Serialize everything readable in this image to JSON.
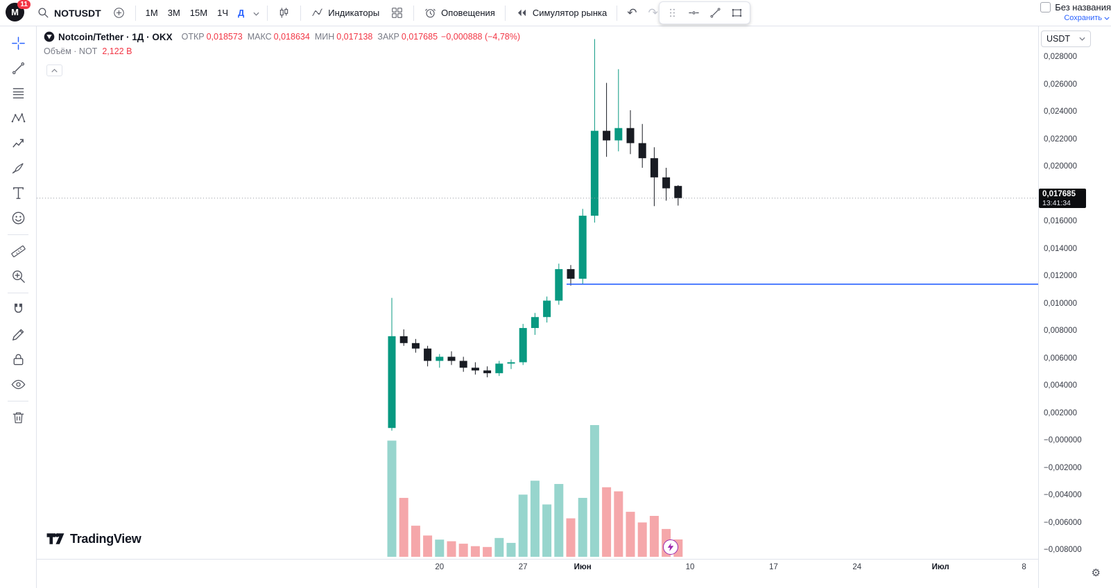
{
  "topbar": {
    "avatar_letter": "M",
    "notification_count": "11",
    "symbol": "NOTUSDT",
    "timeframes": [
      "1М",
      "3М",
      "15М",
      "1Ч"
    ],
    "active_timeframe": "Д",
    "indicators_label": "Индикаторы",
    "alerts_label": "Оповещения",
    "replay_label": "Симулятор рынка",
    "layout_name": "Без названия",
    "save_label": "Сохранить"
  },
  "left_toolbar": {
    "tools": [
      "crosshair",
      "trend-line",
      "fib-retracement",
      "xabcd-pattern",
      "forecast",
      "brush",
      "text",
      "emoji",
      "ruler",
      "zoom",
      "magnet",
      "edit",
      "lock",
      "eye",
      "trash"
    ]
  },
  "legend": {
    "title": "Notcoin/Tether · 1Д · OKX",
    "ohlc": [
      {
        "label": "ОТКР",
        "value": "0,018573"
      },
      {
        "label": "МАКС",
        "value": "0,018634"
      },
      {
        "label": "МИН",
        "value": "0,017138"
      },
      {
        "label": "ЗАКР",
        "value": "0,017685"
      }
    ],
    "change": "−0,000888 (−4,78%)",
    "volume_label": "Объём · NOT",
    "volume_value": "2,122 В"
  },
  "price_axis": {
    "currency": "USDT",
    "labels": [
      "0,028000",
      "0,026000",
      "0,024000",
      "0,022000",
      "0,020000",
      "0,018000",
      "0,016000",
      "0,014000",
      "0,012000",
      "0,010000",
      "0,008000",
      "0,006000",
      "0,004000",
      "0,002000",
      "−0,000000",
      "−0,002000",
      "−0,004000",
      "−0,006000",
      "−0,008000"
    ],
    "current_price": "0,017685",
    "countdown": "13:41:34"
  },
  "time_axis": {
    "labels": [
      {
        "text": "20",
        "index": 4
      },
      {
        "text": "27",
        "index": 11
      },
      {
        "text": "Июн",
        "index": 16,
        "bold": true
      },
      {
        "text": "10",
        "index": 25
      },
      {
        "text": "17",
        "index": 32
      },
      {
        "text": "24",
        "index": 39
      },
      {
        "text": "Июл",
        "index": 46,
        "bold": true
      },
      {
        "text": "8",
        "index": 53
      }
    ]
  },
  "watermark": "TradingView",
  "chart_data": {
    "type": "candlestick",
    "title": "Notcoin/Tether 1Д OKX",
    "symbol": "NOTUSDT",
    "exchange": "OKX",
    "interval": "1Д",
    "y_axis": {
      "min": -0.008,
      "max": 0.028,
      "step": 0.002
    },
    "last_price": 0.017685,
    "last_price_label": "0,017685",
    "level_line_price": 0.0114,
    "volume_unit": "B",
    "candles": [
      {
        "o": 0.0009,
        "h": 0.0104,
        "l": 0.0007,
        "c": 0.0076,
        "v": 14.2
      },
      {
        "o": 0.0076,
        "h": 0.0081,
        "l": 0.0069,
        "c": 0.0071,
        "v": 7.2
      },
      {
        "o": 0.0071,
        "h": 0.0074,
        "l": 0.0064,
        "c": 0.0067,
        "v": 3.8
      },
      {
        "o": 0.0067,
        "h": 0.0069,
        "l": 0.0054,
        "c": 0.0058,
        "v": 2.6
      },
      {
        "o": 0.0058,
        "h": 0.0063,
        "l": 0.0053,
        "c": 0.0061,
        "v": 2.1
      },
      {
        "o": 0.0061,
        "h": 0.0065,
        "l": 0.0055,
        "c": 0.0058,
        "v": 1.9
      },
      {
        "o": 0.0058,
        "h": 0.0061,
        "l": 0.005,
        "c": 0.0053,
        "v": 1.6
      },
      {
        "o": 0.0053,
        "h": 0.0057,
        "l": 0.0048,
        "c": 0.0051,
        "v": 1.3
      },
      {
        "o": 0.0051,
        "h": 0.0054,
        "l": 0.0046,
        "c": 0.0049,
        "v": 1.2
      },
      {
        "o": 0.0049,
        "h": 0.0058,
        "l": 0.0047,
        "c": 0.0056,
        "v": 2.3
      },
      {
        "o": 0.0056,
        "h": 0.0059,
        "l": 0.0052,
        "c": 0.0057,
        "v": 1.7
      },
      {
        "o": 0.0057,
        "h": 0.0085,
        "l": 0.0055,
        "c": 0.0082,
        "v": 7.6
      },
      {
        "o": 0.0082,
        "h": 0.0093,
        "l": 0.0077,
        "c": 0.009,
        "v": 9.3
      },
      {
        "o": 0.009,
        "h": 0.0105,
        "l": 0.0086,
        "c": 0.0102,
        "v": 6.4
      },
      {
        "o": 0.0102,
        "h": 0.0129,
        "l": 0.0099,
        "c": 0.0125,
        "v": 8.9
      },
      {
        "o": 0.0125,
        "h": 0.0128,
        "l": 0.0113,
        "c": 0.0118,
        "v": 4.7
      },
      {
        "o": 0.0118,
        "h": 0.0169,
        "l": 0.0114,
        "c": 0.0164,
        "v": 7.2
      },
      {
        "o": 0.0164,
        "h": 0.0293,
        "l": 0.0159,
        "c": 0.0226,
        "v": 16.1
      },
      {
        "o": 0.0226,
        "h": 0.0261,
        "l": 0.0207,
        "c": 0.0219,
        "v": 8.5
      },
      {
        "o": 0.0219,
        "h": 0.0271,
        "l": 0.0211,
        "c": 0.0228,
        "v": 8.0,
        "vd": "down"
      },
      {
        "o": 0.0228,
        "h": 0.0241,
        "l": 0.0209,
        "c": 0.0217,
        "v": 5.5
      },
      {
        "o": 0.0217,
        "h": 0.0231,
        "l": 0.0199,
        "c": 0.0206,
        "v": 4.2
      },
      {
        "o": 0.0206,
        "h": 0.0214,
        "l": 0.0171,
        "c": 0.0192,
        "v": 5.0
      },
      {
        "o": 0.0192,
        "h": 0.0199,
        "l": 0.0175,
        "c": 0.0184,
        "v": 3.4
      },
      {
        "o": 0.018573,
        "h": 0.018634,
        "l": 0.017138,
        "c": 0.017685,
        "v": 2.122
      }
    ]
  },
  "colors": {
    "accent_blue": "#2962ff",
    "up": "#089981",
    "down": "#181b22",
    "vol_up": "#97d5cd",
    "vol_down": "#f5a7aa",
    "red_text": "#f23645"
  }
}
